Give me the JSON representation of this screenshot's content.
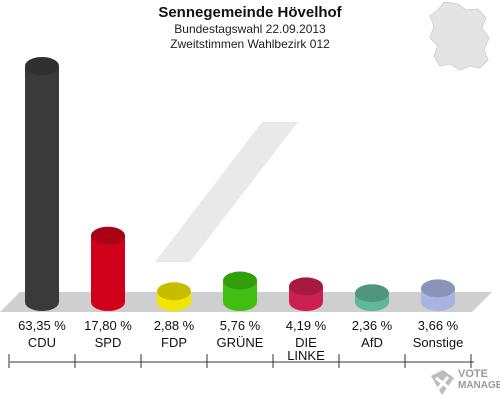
{
  "header": {
    "title": "Sennegemeinde Hövelhof",
    "subtitle": "Bundestagswahl 22.09.2013",
    "subtitle2": "Zweitstimmen Wahlbezirk 012"
  },
  "chart_data": {
    "type": "bar",
    "title": "Sennegemeinde Hövelhof",
    "subtitle": "Bundestagswahl 22.09.2013 – Zweitstimmen Wahlbezirk 012",
    "categories": [
      "CDU",
      "SPD",
      "FDP",
      "GRÜNE",
      "DIE LINKE",
      "AfD",
      "Sonstige"
    ],
    "category_labels": [
      [
        "CDU"
      ],
      [
        "SPD"
      ],
      [
        "FDP"
      ],
      [
        "GRÜNE"
      ],
      [
        "DIE",
        "LINKE"
      ],
      [
        "AfD"
      ],
      [
        "Sonstige"
      ]
    ],
    "values": [
      63.35,
      17.8,
      2.88,
      5.76,
      4.19,
      2.36,
      3.66
    ],
    "value_labels": [
      "63,35 %",
      "17,80 %",
      "2,88 %",
      "5,76 %",
      "4,19 %",
      "2,36 %",
      "3,66 %"
    ],
    "colors": [
      "#3a3a3a",
      "#d0021b",
      "#f2e600",
      "#3fbf0f",
      "#cc1f4f",
      "#5fb89a",
      "#a9b4e0"
    ],
    "ylim": [
      0,
      63.35
    ],
    "grid": false,
    "legend": "none"
  },
  "watermark": {
    "line1": "VOTE",
    "line2": "MANAGER"
  }
}
